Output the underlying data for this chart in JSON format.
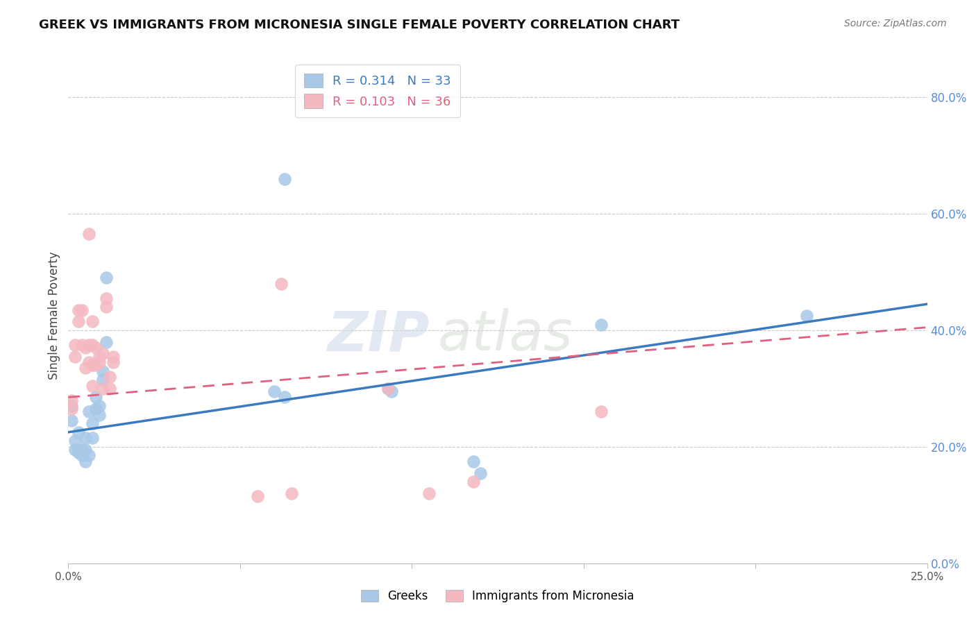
{
  "title": "GREEK VS IMMIGRANTS FROM MICRONESIA SINGLE FEMALE POVERTY CORRELATION CHART",
  "source": "Source: ZipAtlas.com",
  "ylabel": "Single Female Poverty",
  "right_yticks": [
    0.0,
    0.2,
    0.4,
    0.6,
    0.8
  ],
  "right_yticklabels": [
    "0.0%",
    "20.0%",
    "40.0%",
    "60.0%",
    "80.0%"
  ],
  "xlim": [
    0.0,
    0.25
  ],
  "ylim": [
    0.0,
    0.85
  ],
  "greek_R": 0.314,
  "greek_N": 33,
  "micro_R": 0.103,
  "micro_N": 36,
  "greek_color": "#a8c8e8",
  "micro_color": "#f4b8c0",
  "greek_line_color": "#3a7bbf",
  "micro_line_color": "#e06080",
  "legend_label_greek": "Greeks",
  "legend_label_micro": "Immigrants from Micronesia",
  "watermark_zip": "ZIP",
  "watermark_atlas": "atlas",
  "greek_x": [
    0.001,
    0.001,
    0.002,
    0.002,
    0.003,
    0.003,
    0.003,
    0.004,
    0.004,
    0.005,
    0.005,
    0.005,
    0.006,
    0.006,
    0.007,
    0.007,
    0.008,
    0.008,
    0.009,
    0.009,
    0.01,
    0.01,
    0.011,
    0.011,
    0.06,
    0.063,
    0.063,
    0.093,
    0.094,
    0.118,
    0.12,
    0.155,
    0.215
  ],
  "greek_y": [
    0.245,
    0.27,
    0.195,
    0.21,
    0.19,
    0.195,
    0.225,
    0.185,
    0.195,
    0.175,
    0.195,
    0.215,
    0.185,
    0.26,
    0.215,
    0.24,
    0.265,
    0.285,
    0.255,
    0.27,
    0.315,
    0.33,
    0.38,
    0.49,
    0.295,
    0.285,
    0.66,
    0.3,
    0.295,
    0.175,
    0.155,
    0.41,
    0.425
  ],
  "micro_x": [
    0.001,
    0.001,
    0.002,
    0.002,
    0.003,
    0.003,
    0.004,
    0.004,
    0.005,
    0.005,
    0.006,
    0.006,
    0.006,
    0.007,
    0.007,
    0.007,
    0.007,
    0.008,
    0.008,
    0.009,
    0.009,
    0.01,
    0.01,
    0.011,
    0.011,
    0.012,
    0.012,
    0.013,
    0.013,
    0.055,
    0.062,
    0.065,
    0.093,
    0.105,
    0.118,
    0.155
  ],
  "micro_y": [
    0.265,
    0.28,
    0.355,
    0.375,
    0.415,
    0.435,
    0.375,
    0.435,
    0.335,
    0.37,
    0.345,
    0.375,
    0.565,
    0.305,
    0.34,
    0.375,
    0.415,
    0.34,
    0.37,
    0.345,
    0.355,
    0.3,
    0.36,
    0.44,
    0.455,
    0.3,
    0.32,
    0.345,
    0.355,
    0.115,
    0.48,
    0.12,
    0.3,
    0.12,
    0.14,
    0.26
  ],
  "greek_slope": 0.88,
  "greek_intercept": 0.225,
  "micro_slope": 0.48,
  "micro_intercept": 0.285
}
